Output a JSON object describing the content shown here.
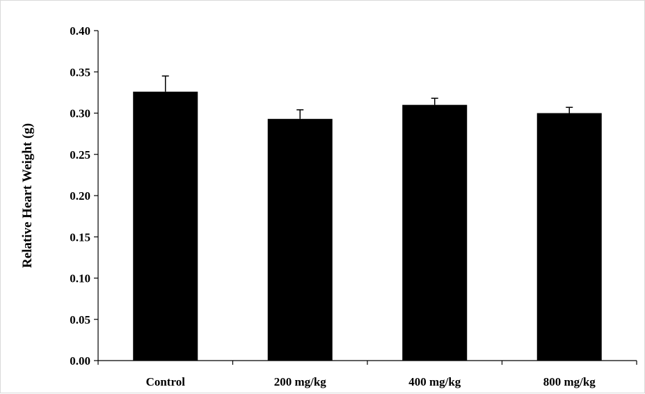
{
  "chart_data": {
    "type": "bar",
    "title": "",
    "xlabel": "",
    "ylabel": "Relative Heart Weight (g)",
    "categories": [
      "Control",
      "200 mg/kg",
      "400 mg/kg",
      "800 mg/kg"
    ],
    "values": [
      0.326,
      0.293,
      0.31,
      0.3
    ],
    "error_bars": [
      0.019,
      0.011,
      0.008,
      0.007
    ],
    "ylim": [
      0.0,
      0.4
    ],
    "yticks": [
      "0.00",
      "0.05",
      "0.10",
      "0.15",
      "0.20",
      "0.25",
      "0.30",
      "0.35",
      "0.40"
    ],
    "grid": false,
    "legend": "none",
    "bar_color": "#000000"
  }
}
